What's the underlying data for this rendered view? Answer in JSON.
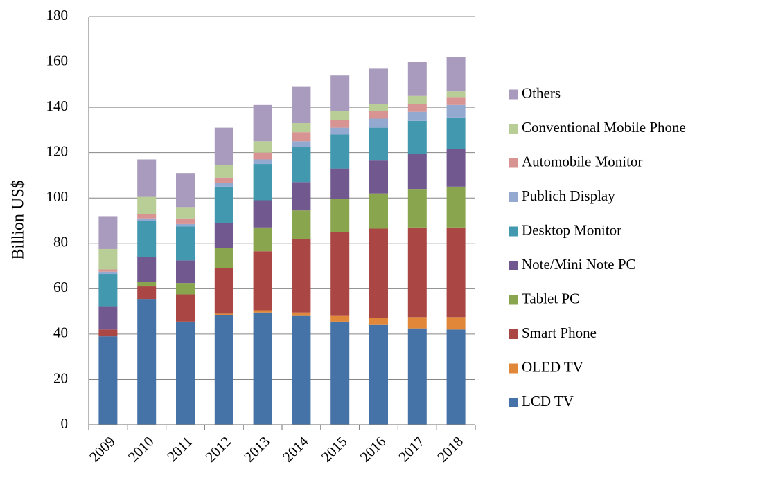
{
  "chart_data": {
    "type": "stacked_bar",
    "y_label": "Billion US$",
    "categories": [
      "2009",
      "2010",
      "2011",
      "2012",
      "2013",
      "2014",
      "2015",
      "2016",
      "2017",
      "2018"
    ],
    "series": [
      {
        "name": "LCD TV",
        "color": "#4572a7",
        "values": [
          39,
          55.5,
          45.5,
          48.5,
          49.5,
          48,
          45.5,
          44,
          42.5,
          42
        ]
      },
      {
        "name": "OLED TV",
        "color": "#e0873a",
        "values": [
          0,
          0,
          0,
          0.5,
          1,
          1.5,
          2.5,
          3,
          5,
          5.5
        ]
      },
      {
        "name": "Smart Phone",
        "color": "#aa4643",
        "values": [
          3,
          5.5,
          12,
          20,
          26,
          32.5,
          37,
          39.5,
          39.5,
          39.5
        ]
      },
      {
        "name": "Tablet PC",
        "color": "#89a54e",
        "values": [
          0,
          2,
          5,
          9,
          10.5,
          12.5,
          14.5,
          15.5,
          17,
          18
        ]
      },
      {
        "name": "Note/Mini Note PC",
        "color": "#71588f",
        "values": [
          10,
          11,
          10,
          11,
          12,
          12.5,
          13.5,
          14.5,
          15.5,
          16.5
        ]
      },
      {
        "name": "Desktop Monitor",
        "color": "#4198af",
        "values": [
          14.5,
          16,
          15,
          16,
          16,
          15.5,
          15,
          14.5,
          14.5,
          14
        ]
      },
      {
        "name": "Publich Display",
        "color": "#93a9cf",
        "values": [
          1,
          1,
          1,
          1.5,
          2,
          2.5,
          3,
          4,
          4,
          5.5
        ]
      },
      {
        "name": "Automobile Monitor",
        "color": "#d89493",
        "values": [
          1,
          2,
          2.5,
          2.5,
          3,
          4,
          3.5,
          3.5,
          3.5,
          3.5
        ]
      },
      {
        "name": "Conventional Mobile Phone",
        "color": "#b9cd96",
        "values": [
          9,
          7.5,
          5,
          5.5,
          5,
          4,
          4,
          3,
          3.5,
          2.5
        ]
      },
      {
        "name": "Others",
        "color": "#a99bbd",
        "values": [
          14.5,
          16.5,
          15,
          16.5,
          16,
          16,
          15.5,
          15.5,
          15,
          15
        ]
      }
    ],
    "ylim": [
      0,
      180
    ],
    "yticks": [
      0,
      20,
      40,
      60,
      80,
      100,
      120,
      140,
      160,
      180
    ],
    "grid": true,
    "legend": "right"
  }
}
